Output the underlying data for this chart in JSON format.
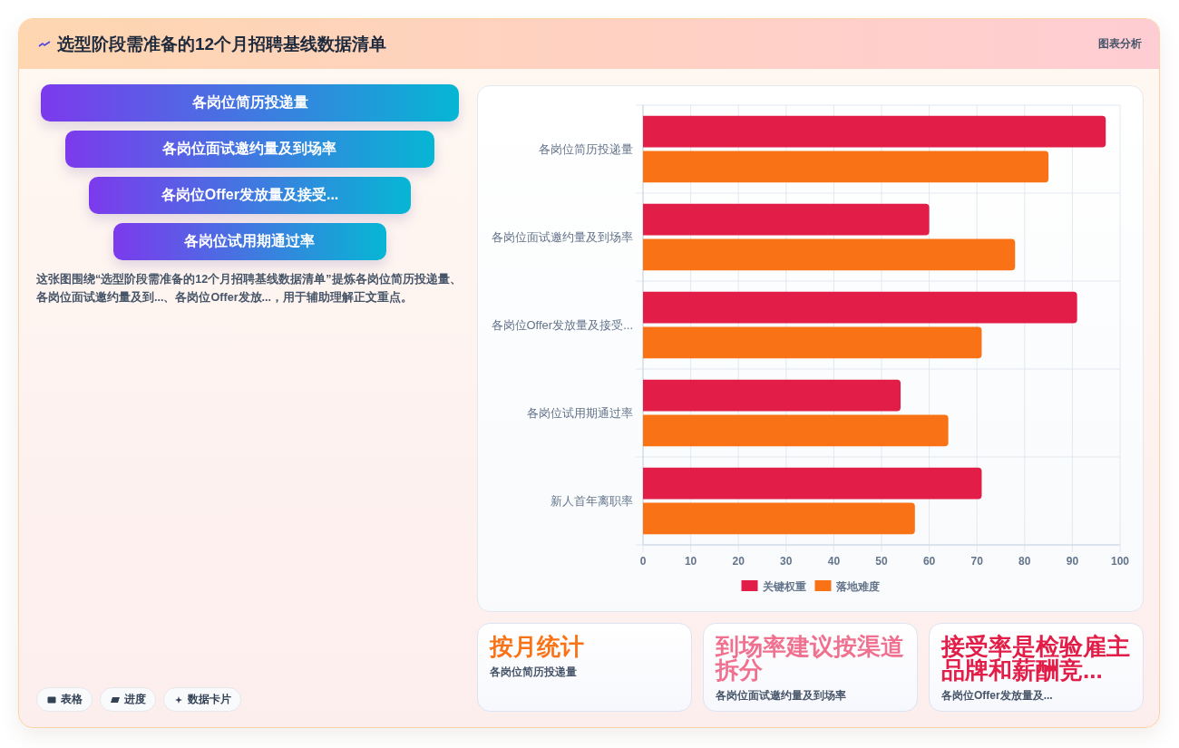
{
  "chart_data": [
    {
      "type": "other",
      "title": "选型阶段需准备的12个月招聘基线数据清单",
      "annotations": [
        "图表分析"
      ]
    },
    {
      "type": "other",
      "categories": [
        "各岗位简历投递量",
        "各岗位面试邀约量及到场率",
        "各岗位Offer发放量及接受...",
        "各岗位试用期通过率"
      ],
      "annotations": [
        "这张图围绕“选型阶段需准备的12个月招聘基线数据清单”提炼各岗位简历投递量、各岗位面试邀约量及到...、各岗位Offer发放...，用于辅助理解正文重点。",
        "表格",
        "进度",
        "数据卡片"
      ]
    },
    {
      "type": "bar",
      "orientation": "horizontal",
      "categories": [
        "各岗位简历投递量",
        "各岗位面试邀约量及到场率",
        "各岗位Offer发放量及接受...",
        "各岗位试用期通过率",
        "新人首年离职率"
      ],
      "series": [
        {
          "name": "关键权重",
          "color": "#e11d48",
          "values": [
            97,
            60,
            91,
            54,
            71
          ]
        },
        {
          "name": "落地难度",
          "color": "#f97316",
          "values": [
            85,
            78,
            71,
            64,
            57
          ]
        }
      ],
      "xlim": [
        0,
        100
      ],
      "xticks": [
        0,
        10,
        20,
        30,
        40,
        50,
        60,
        70,
        80,
        90,
        100
      ],
      "grid": true,
      "legend": "bottom"
    },
    {
      "type": "other",
      "title": "按月统计",
      "subtitle": "各岗位简历投递量"
    },
    {
      "type": "other",
      "title": "到场率建议按渠道拆分",
      "subtitle": "各岗位面试邀约量及到场率"
    },
    {
      "type": "other",
      "title": "接受率是检验雇主品牌和薪酬竞...",
      "subtitle": "各岗位Offer发放量及..."
    }
  ]
}
